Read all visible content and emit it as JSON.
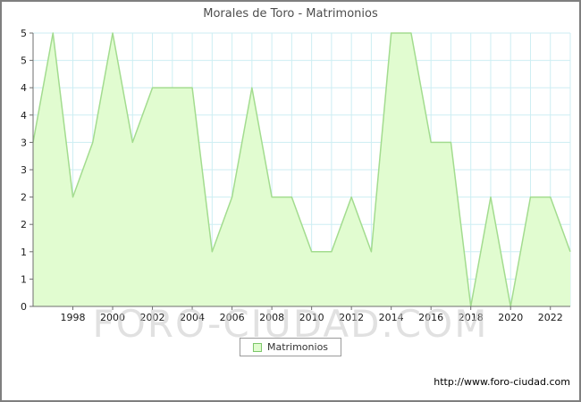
{
  "title": "Morales de Toro - Matrimonios",
  "legend": {
    "label": "Matrimonios"
  },
  "watermark": "FORO-CIUDAD.COM",
  "footer": {
    "url": "http://www.foro-ciudad.com"
  },
  "chart_data": {
    "type": "area",
    "title": "Morales de Toro - Matrimonios",
    "xlabel": "",
    "ylabel": "",
    "x": [
      1996,
      1997,
      1998,
      1999,
      2000,
      2001,
      2002,
      2003,
      2004,
      2005,
      2006,
      2007,
      2008,
      2009,
      2010,
      2011,
      2012,
      2013,
      2014,
      2015,
      2016,
      2017,
      2018,
      2019,
      2020,
      2021,
      2022,
      2023
    ],
    "series": [
      {
        "name": "Matrimonios",
        "values": [
          3,
          5,
          2,
          3,
          5,
          3,
          4,
          4,
          4,
          1,
          2,
          4,
          2,
          2,
          1,
          1,
          2,
          1,
          5,
          5,
          3,
          3,
          0,
          2,
          0,
          2,
          2,
          1
        ]
      }
    ],
    "ylim": [
      0,
      5
    ],
    "y_tick_step": 0.5,
    "y_tick_labels": [
      "0",
      "1",
      "1",
      "2",
      "2",
      "3",
      "3",
      "4",
      "4",
      "5",
      "5"
    ],
    "x_tick_labels": [
      "1998",
      "2000",
      "2002",
      "2004",
      "2006",
      "2008",
      "2010",
      "2012",
      "2014",
      "2016",
      "2018",
      "2020",
      "2022"
    ],
    "grid": true,
    "legend_position": "bottom",
    "colors": {
      "fill": "#e1fcd0",
      "line": "#a3dc8f",
      "grid": "#cdeef3",
      "axis": "#6e6e6e",
      "tick_text": "#1a1a1a"
    }
  }
}
